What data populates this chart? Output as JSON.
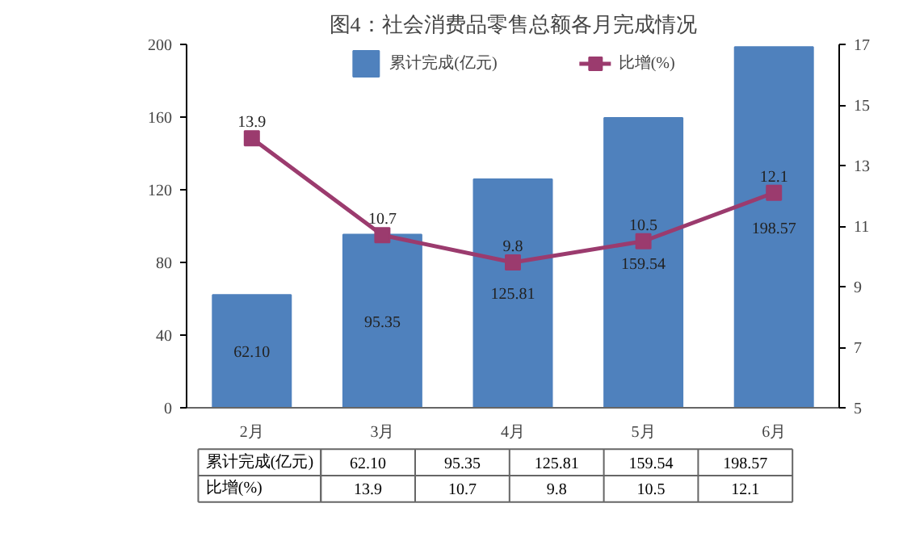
{
  "chart_data": {
    "type": "bar",
    "title": "图4：社会消费品零售总额各月完成情况",
    "categories": [
      "2月",
      "3月",
      "4月",
      "5月",
      "6月"
    ],
    "series": [
      {
        "name": "累计完成(亿元)",
        "color": "#4f81bd",
        "values": [
          62.1,
          95.35,
          125.81,
          159.54,
          198.57
        ],
        "value_labels": [
          "62.10",
          "95.35",
          "125.81",
          "159.54",
          "198.57"
        ]
      },
      {
        "name": "比增(%)",
        "type": "line",
        "axis": "y2",
        "color": "#9b3b6e",
        "marker": "square",
        "values": [
          13.9,
          10.7,
          9.8,
          10.5,
          12.1
        ],
        "value_labels": [
          "13.9",
          "10.7",
          "9.8",
          "10.5",
          "12.1"
        ]
      }
    ],
    "ylim": [
      0,
      200
    ],
    "yticks": [
      0,
      40,
      80,
      120,
      160,
      200
    ],
    "y2lim": [
      5,
      17
    ],
    "y2ticks": [
      5,
      7,
      9,
      11,
      13,
      15,
      17
    ],
    "grid": false,
    "legend": "top"
  }
}
